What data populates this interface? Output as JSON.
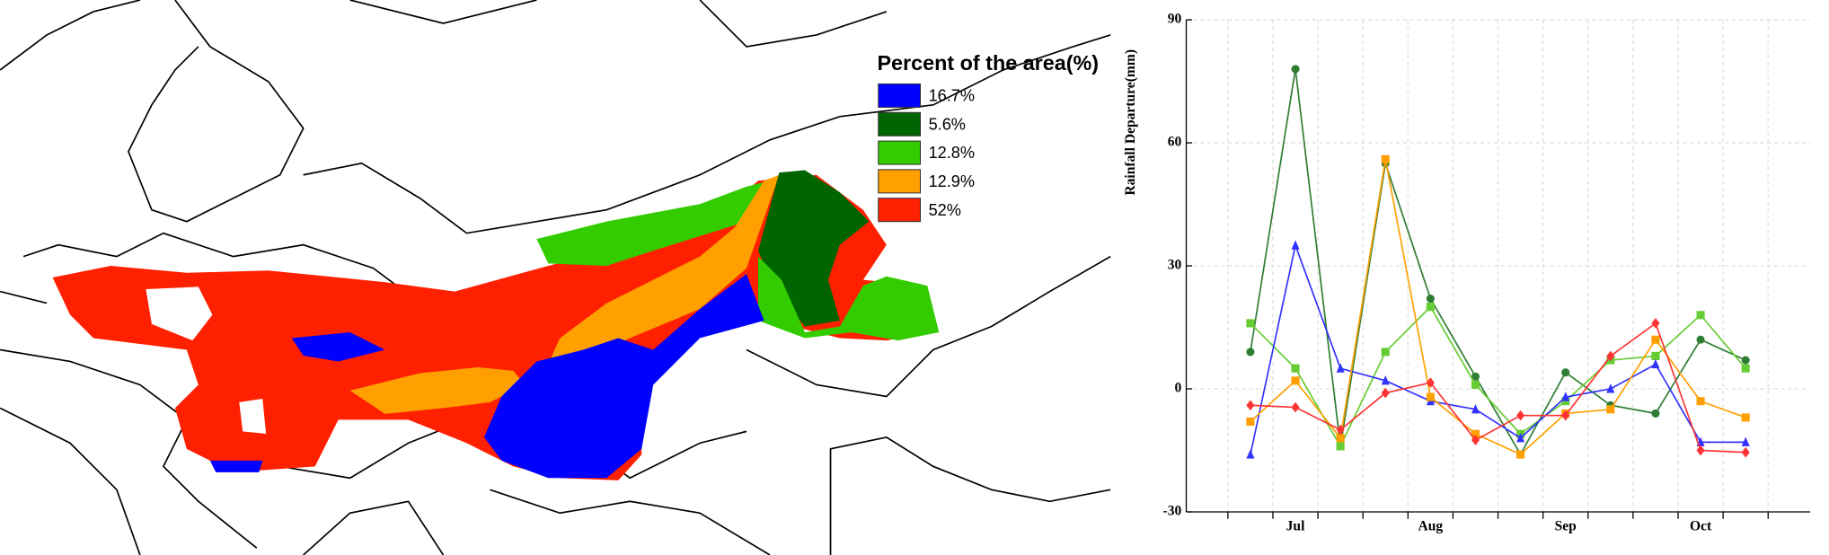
{
  "legend": {
    "title": "Percent of the area(%)",
    "entries": [
      {
        "label": "16.7%",
        "color": "#0000ff"
      },
      {
        "label": "5.6%",
        "color": "#006400"
      },
      {
        "label": "12.8%",
        "color": "#33cc00"
      },
      {
        "label": "12.9%",
        "color": "#ffa000"
      },
      {
        "label": "52%",
        "color": "#ff2000"
      }
    ]
  },
  "chart_data": {
    "type": "line",
    "y_label": "Rainfall Departure(mm)",
    "categories": [
      null,
      "Jul",
      null,
      null,
      "Aug",
      null,
      null,
      "Sep",
      null,
      null,
      "Oct",
      null
    ],
    "ylim": [
      -30,
      90
    ],
    "yticks": [
      -30,
      0,
      30,
      60,
      90
    ],
    "grid": true,
    "series": [
      {
        "color": "#2e7d32",
        "marker": "circle",
        "values": [
          9,
          78,
          -14,
          55,
          22,
          3,
          -16,
          4,
          -4,
          -6,
          12,
          7
        ]
      },
      {
        "color": "#66cc33",
        "marker": "square",
        "values": [
          16,
          5,
          -14,
          9,
          20,
          1,
          -11,
          -3,
          7,
          8,
          18,
          5
        ]
      },
      {
        "color": "#3333ff",
        "marker": "triangle",
        "values": [
          -16,
          35,
          5,
          2,
          -3,
          -5,
          -12,
          -2,
          0,
          6,
          -13,
          -13
        ]
      },
      {
        "color": "#ffa000",
        "marker": "square",
        "values": [
          -8,
          2,
          -12,
          56,
          -2,
          -11,
          -16,
          -6,
          -5,
          12,
          -3,
          -7
        ]
      },
      {
        "color": "#ff3333",
        "marker": "diamond",
        "values": [
          -4,
          -4.5,
          -10,
          -1,
          1.5,
          -12.5,
          -6.5,
          -6.5,
          8,
          16,
          -15,
          -15.5
        ]
      }
    ]
  }
}
